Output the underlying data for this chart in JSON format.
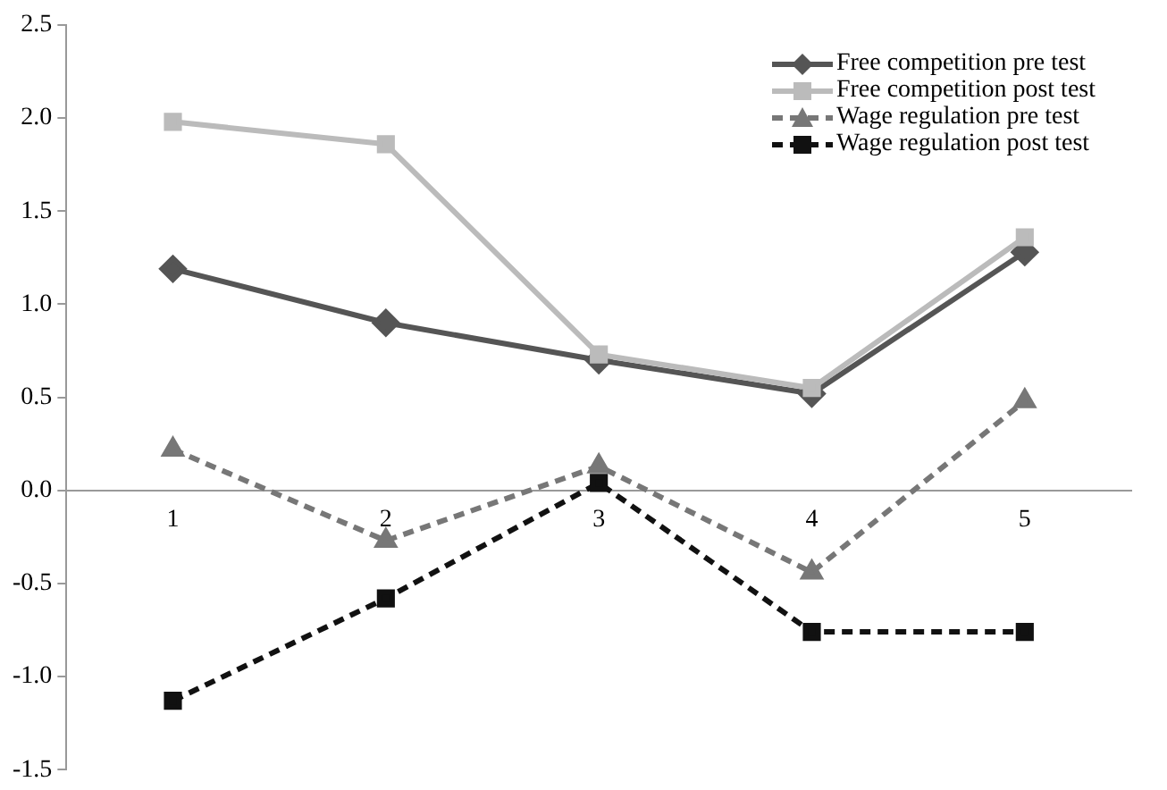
{
  "chart_data": {
    "type": "line",
    "categories": [
      "1",
      "2",
      "3",
      "4",
      "5"
    ],
    "series": [
      {
        "name": "Free competition pre test",
        "color": "#555555",
        "marker": "diamond",
        "line_style": "solid",
        "values": [
          1.19,
          0.9,
          0.7,
          0.52,
          1.28
        ]
      },
      {
        "name": "Free competition post test",
        "color": "#bbbbbb",
        "marker": "square",
        "line_style": "solid",
        "values": [
          1.98,
          1.86,
          0.73,
          0.55,
          1.36
        ]
      },
      {
        "name": "Wage regulation pre test",
        "color": "#777777",
        "marker": "triangle",
        "line_style": "dashed",
        "values": [
          0.22,
          -0.27,
          0.13,
          -0.44,
          0.48
        ]
      },
      {
        "name": "Wage regulation post test",
        "color": "#111111",
        "marker": "square",
        "line_style": "dashed",
        "values": [
          -1.13,
          -0.58,
          0.04,
          -0.76,
          -0.76
        ]
      }
    ],
    "ylim": [
      -1.5,
      2.5
    ],
    "yticks": [
      {
        "value": -1.5,
        "label": "-1.5"
      },
      {
        "value": -1,
        "label": "-1.0"
      },
      {
        "value": -0.5,
        "label": "-0.5"
      },
      {
        "value": 0,
        "label": "0.0"
      },
      {
        "value": 0.5,
        "label": "0.5"
      },
      {
        "value": 1,
        "label": "1.0"
      },
      {
        "value": 1.5,
        "label": "1.5"
      },
      {
        "value": 2,
        "label": "2.0"
      },
      {
        "value": 2.5,
        "label": "2.5"
      }
    ],
    "grid": false,
    "legend": "top right"
  }
}
